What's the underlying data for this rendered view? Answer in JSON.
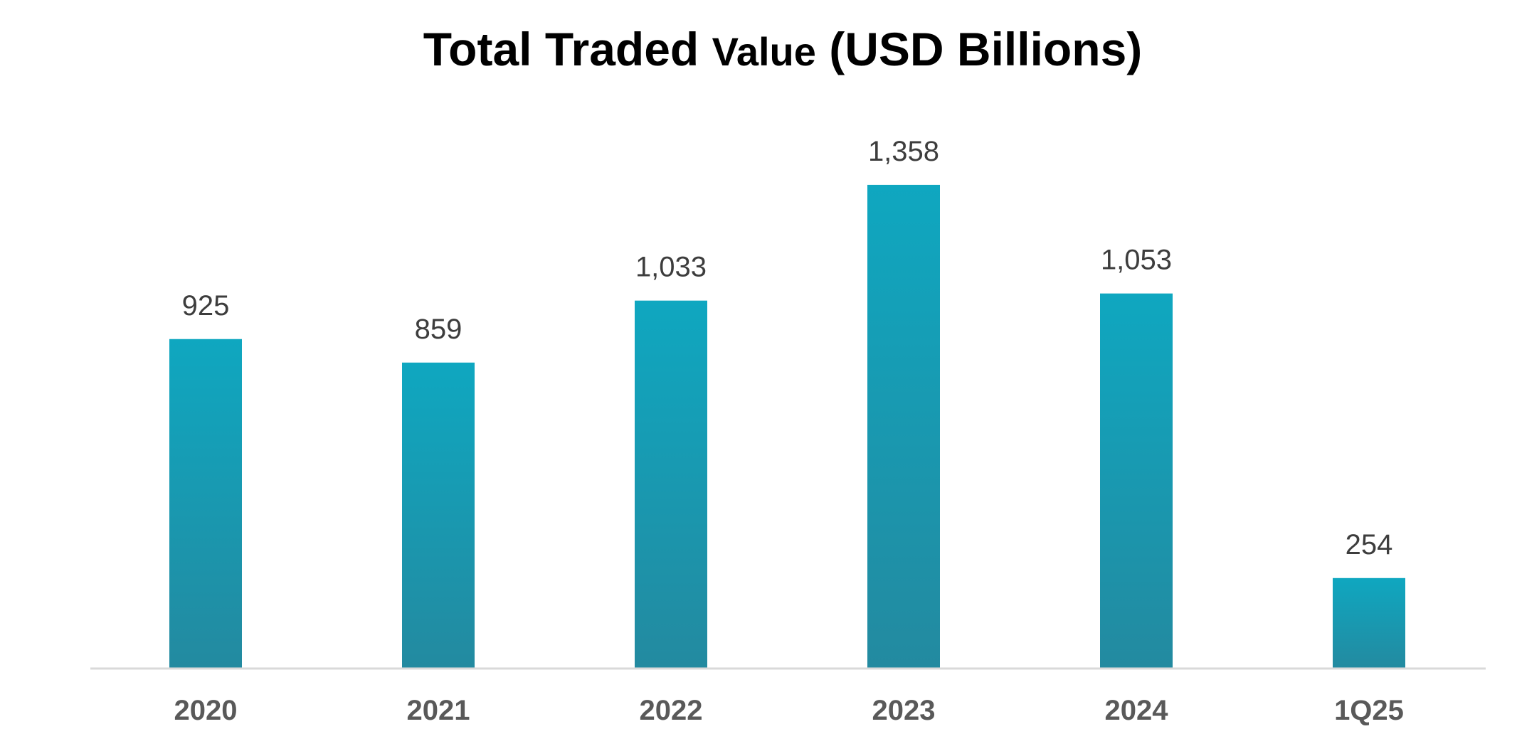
{
  "chart_data": {
    "type": "bar",
    "title": "Total Traded Value (USD Billions)",
    "title_parts": [
      "Total Traded ",
      "Value",
      " (USD Billions)"
    ],
    "xlabel": "",
    "ylabel": "",
    "categories": [
      "2020",
      "2021",
      "2022",
      "2023",
      "2024",
      "1Q25"
    ],
    "values": [
      925,
      859,
      1033,
      1358,
      1053,
      254
    ],
    "value_labels": [
      "925",
      "859",
      "1,033",
      "1,358",
      "1,053",
      "254"
    ],
    "ylim": [
      0,
      1400
    ],
    "grid": false,
    "legend": "none",
    "colors": {
      "bar_top": "#0fa7c0",
      "bar_bottom": "#238aa0",
      "axis": "#d9d9d9"
    }
  }
}
